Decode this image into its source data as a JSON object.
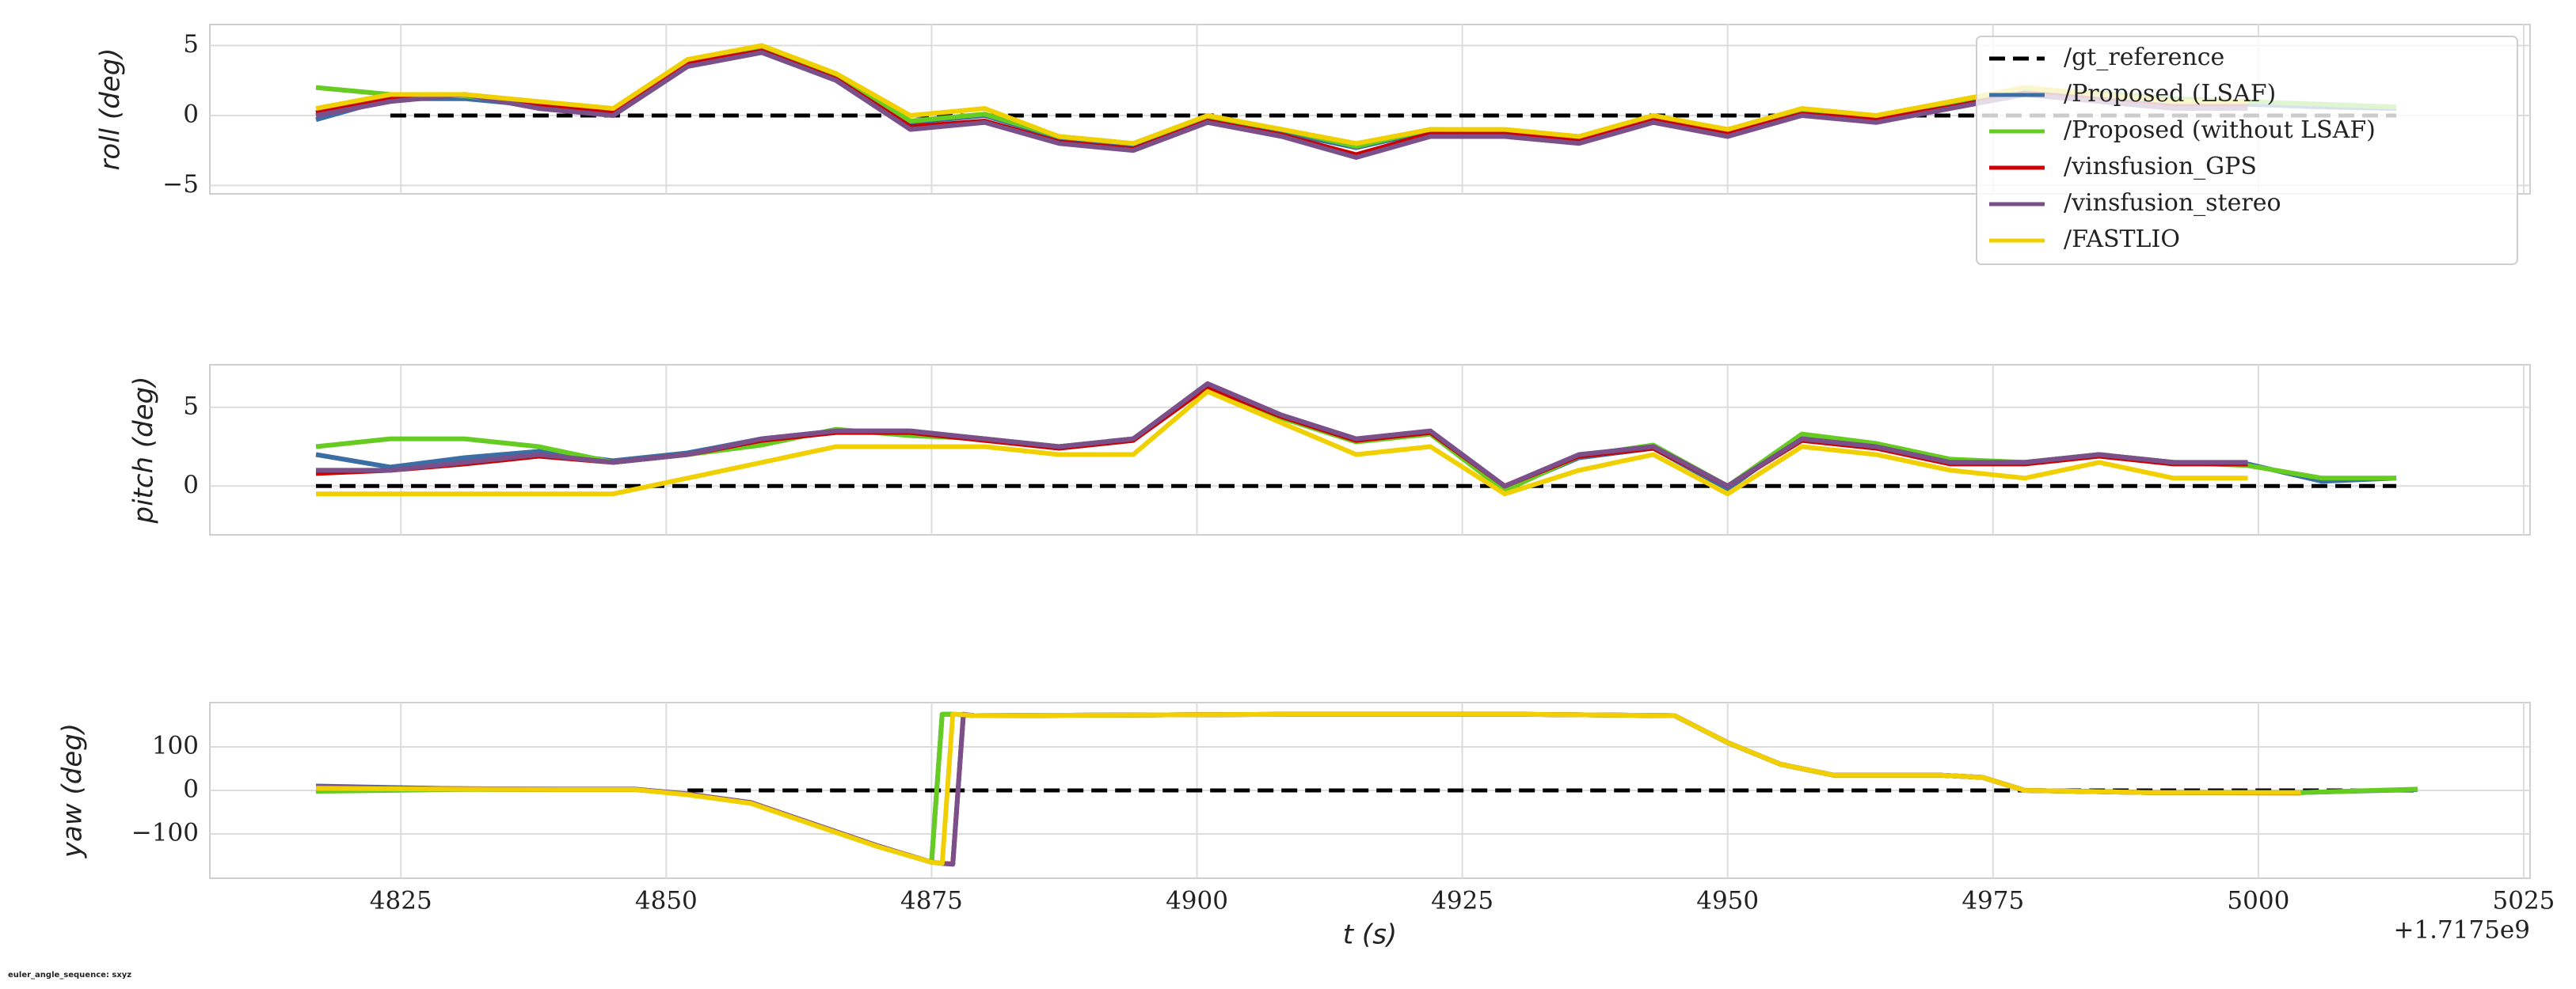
{
  "chart_data": [
    {
      "type": "line",
      "ylabel": "roll (deg)",
      "legend": "upper right",
      "grid": true,
      "xlim": [
        4807,
        5025.6
      ],
      "ylim": [
        -5.6,
        6.5
      ],
      "xticks": [
        4825,
        4850,
        4875,
        4900,
        4925,
        4950,
        4975,
        5000,
        5025
      ],
      "yticks": [
        {
          "value": -5,
          "label": "−5"
        },
        0,
        5
      ],
      "x": [
        4817,
        4824,
        4831,
        4838,
        4845,
        4852,
        4859,
        4866,
        4873,
        4880,
        4887,
        4894,
        4901,
        4908,
        4915,
        4922,
        4929,
        4936,
        4943,
        4950,
        4957,
        4964,
        4971,
        4978,
        4985,
        4992,
        4999,
        5006,
        5013
      ],
      "series": [
        {
          "name": "/gt_reference",
          "color": "#000000",
          "linestyle": "dashed",
          "values": [
            null,
            0,
            0,
            0,
            0,
            0,
            0,
            0,
            0,
            0,
            0,
            0,
            0,
            0,
            0,
            0,
            0,
            0,
            0,
            0,
            0,
            0,
            0,
            0,
            0,
            0,
            0,
            0,
            0
          ]
        },
        {
          "name": "/Proposed (LSAF)",
          "color": "#3a6ea5",
          "values": [
            -0.3,
            1.2,
            1.2,
            0.7,
            0,
            3.8,
            4.6,
            2.7,
            -0.5,
            0,
            -1.6,
            -2.1,
            -0.2,
            -1.2,
            -2.3,
            -1.1,
            -1.2,
            -1.6,
            -0.2,
            -1.1,
            0.2,
            -0.1,
            0.8,
            1.8,
            1.4,
            0.9,
            0.8,
            0.6,
            0.5
          ]
        },
        {
          "name": "/Proposed (without LSAF)",
          "color": "#66cc22",
          "values": [
            2,
            1.5,
            1.4,
            0.8,
            0.3,
            4,
            4.7,
            2.8,
            -0.4,
            0.1,
            -1.5,
            -2,
            -0.1,
            -1,
            -2.2,
            -1,
            -1.1,
            -1.5,
            -0.1,
            -1,
            0.3,
            0,
            0.9,
            1.9,
            1.6,
            1.2,
            1,
            0.8,
            0.6
          ]
        },
        {
          "name": "/vinsfusion_GPS",
          "color": "#cc0000",
          "values": [
            0.2,
            1.2,
            1.5,
            0.7,
            0.2,
            3.7,
            4.6,
            2.6,
            -0.8,
            -0.4,
            -1.9,
            -2.4,
            -0.4,
            -1.4,
            -2.8,
            -1.3,
            -1.3,
            -1.8,
            -0.3,
            -1.3,
            0.1,
            -0.3,
            0.6,
            1.6,
            1.1,
            0.6,
            0.6,
            null,
            null
          ]
        },
        {
          "name": "/vinsfusion_stereo",
          "color": "#7a4f8a",
          "values": [
            0,
            1,
            1.5,
            0.5,
            0,
            3.5,
            4.5,
            2.5,
            -1,
            -0.5,
            -2,
            -2.5,
            -0.5,
            -1.5,
            -3,
            -1.5,
            -1.5,
            -2,
            -0.5,
            -1.5,
            0,
            -0.5,
            0.5,
            1.5,
            1,
            0.5,
            0.5,
            null,
            null
          ]
        },
        {
          "name": "/FASTLIO",
          "color": "#f0d000",
          "values": [
            0.5,
            1.5,
            1.5,
            1,
            0.5,
            4,
            5,
            3,
            0,
            0.5,
            -1.5,
            -2,
            0,
            -1,
            -2,
            -1,
            -1,
            -1.5,
            0,
            -1,
            0.5,
            0,
            1,
            2,
            1.5,
            1,
            1,
            null,
            null
          ]
        }
      ]
    },
    {
      "type": "line",
      "ylabel": "pitch (deg)",
      "grid": true,
      "xlim": [
        4807,
        5025.6
      ],
      "ylim": [
        -3.1,
        7.7
      ],
      "xticks": [
        4825,
        4850,
        4875,
        4900,
        4925,
        4950,
        4975,
        5000,
        5025
      ],
      "yticks": [
        0,
        5
      ],
      "x": [
        4817,
        4824,
        4831,
        4838,
        4845,
        4852,
        4859,
        4866,
        4873,
        4880,
        4887,
        4894,
        4901,
        4908,
        4915,
        4922,
        4929,
        4936,
        4943,
        4950,
        4957,
        4964,
        4971,
        4978,
        4985,
        4992,
        4999,
        5006,
        5013
      ],
      "series": [
        {
          "name": "/gt_reference",
          "color": "#000000",
          "linestyle": "dashed",
          "values": [
            0,
            0,
            0,
            0,
            0,
            0,
            0,
            0,
            0,
            0,
            0,
            0,
            0,
            0,
            0,
            0,
            0,
            0,
            0,
            0,
            0,
            0,
            0,
            0,
            0,
            0,
            0,
            0,
            0
          ]
        },
        {
          "name": "/Proposed (LSAF)",
          "color": "#3a6ea5",
          "values": [
            2,
            1.2,
            1.8,
            2.2,
            1.6,
            2.1,
            3,
            3.5,
            3.4,
            3,
            2.5,
            3,
            6.4,
            4.4,
            2.9,
            3.4,
            -0.2,
            1.8,
            2.4,
            -0.2,
            3.2,
            2.6,
            1.6,
            1.5,
            2,
            1.5,
            1.4,
            0.3,
            0.5
          ]
        },
        {
          "name": "/Proposed (without LSAF)",
          "color": "#66cc22",
          "values": [
            2.5,
            3,
            3,
            2.5,
            1.5,
            2,
            2.6,
            3.6,
            3.2,
            3,
            2.5,
            3,
            6.3,
            4.3,
            2.8,
            3.3,
            -0.3,
            1.9,
            2.6,
            0,
            3.3,
            2.7,
            1.7,
            1.5,
            2,
            1.5,
            1.3,
            0.5,
            0.5
          ]
        },
        {
          "name": "/vinsfusion_GPS",
          "color": "#cc0000",
          "values": [
            0.8,
            1,
            1.4,
            1.9,
            1.5,
            2,
            2.9,
            3.4,
            3.4,
            2.9,
            2.4,
            2.9,
            6.3,
            4.4,
            2.9,
            3.4,
            0,
            1.9,
            2.4,
            0,
            2.9,
            2.4,
            1.4,
            1.4,
            1.9,
            1.4,
            1.4,
            null,
            null
          ]
        },
        {
          "name": "/vinsfusion_stereo",
          "color": "#7a4f8a",
          "values": [
            1,
            1,
            1.5,
            2,
            1.5,
            2,
            3,
            3.5,
            3.5,
            3,
            2.5,
            3,
            6.5,
            4.5,
            3,
            3.5,
            0,
            2,
            2.5,
            0,
            3,
            2.5,
            1.5,
            1.5,
            2,
            1.5,
            1.5,
            null,
            null
          ]
        },
        {
          "name": "/FASTLIO",
          "color": "#f0d000",
          "values": [
            -0.5,
            -0.5,
            -0.5,
            -0.5,
            -0.5,
            0.5,
            1.5,
            2.5,
            2.5,
            2.5,
            2,
            2,
            6,
            4,
            2,
            2.5,
            -0.5,
            1,
            2,
            -0.5,
            2.5,
            2,
            1,
            0.5,
            1.5,
            0.5,
            0.5,
            null,
            null
          ]
        }
      ]
    },
    {
      "type": "line",
      "ylabel": "yaw (deg)",
      "xlabel": "t (s)",
      "x_offset": "+1.7175e9",
      "grid": true,
      "xlim": [
        4807,
        5025.6
      ],
      "ylim": [
        -202,
        202
      ],
      "xticks": [
        4825,
        4850,
        4875,
        4900,
        4925,
        4950,
        4975,
        5000,
        5025
      ],
      "yticks": [
        {
          "value": -100,
          "label": "−100"
        },
        0,
        100
      ],
      "x": [
        4817,
        4830,
        4840,
        4847,
        4852,
        4858,
        4864,
        4870,
        4875,
        4876,
        4877,
        4878,
        4879,
        4890,
        4910,
        4930,
        4945,
        4950,
        4955,
        4960,
        4970,
        4974,
        4978,
        4990,
        5004,
        5015
      ],
      "series": [
        {
          "name": "/gt_reference",
          "color": "#000000",
          "linestyle": "dashed",
          "values": [
            null,
            null,
            null,
            null,
            0,
            0,
            0,
            0,
            0,
            0,
            0,
            0,
            0,
            0,
            0,
            0,
            0,
            0,
            0,
            0,
            0,
            0,
            0,
            0,
            0,
            0
          ]
        },
        {
          "name": "/Proposed (LSAF)",
          "color": "#3a6ea5",
          "values": [
            10,
            4,
            3,
            3,
            -9,
            -29,
            -79,
            -129,
            -165,
            175,
            175,
            174,
            172,
            173,
            175,
            175,
            172,
            110,
            60,
            35,
            35,
            30,
            0,
            -5,
            -5,
            2
          ]
        },
        {
          "name": "/Proposed (without LSAF)",
          "color": "#66cc22",
          "values": [
            -2,
            2,
            2,
            2,
            -9,
            -29,
            -79,
            -129,
            -165,
            175,
            175,
            174,
            172,
            173,
            175,
            175,
            172,
            110,
            60,
            35,
            35,
            30,
            0,
            -5,
            -5,
            3
          ]
        },
        {
          "name": "/vinsfusion_GPS",
          "color": "#cc0000",
          "values": [
            6,
            3,
            2,
            2,
            -9,
            -29,
            -79,
            -129,
            -165,
            -168,
            -169,
            175,
            172,
            173,
            175,
            175,
            172,
            110,
            60,
            35,
            35,
            30,
            0,
            -5,
            -6,
            null
          ]
        },
        {
          "name": "/vinsfusion_stereo",
          "color": "#7a4f8a",
          "values": [
            8,
            4,
            3,
            3,
            -8,
            -28,
            -78,
            -128,
            -165,
            -168,
            -170,
            175,
            172,
            173,
            175,
            175,
            172,
            110,
            60,
            35,
            35,
            30,
            0,
            -5,
            -5,
            null
          ]
        },
        {
          "name": "/FASTLIO",
          "color": "#f0d000",
          "values": [
            5,
            3,
            2,
            2,
            -10,
            -30,
            -80,
            -130,
            -165,
            -168,
            175,
            174,
            172,
            173,
            175,
            175,
            172,
            110,
            60,
            35,
            35,
            30,
            0,
            -5,
            -5,
            null
          ]
        }
      ]
    }
  ],
  "footer": "euler_angle_sequence: sxyz"
}
